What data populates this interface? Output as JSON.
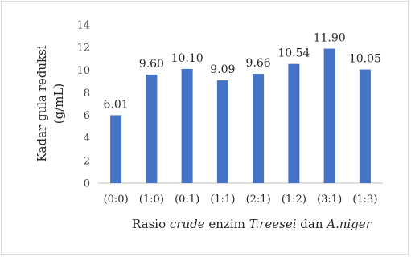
{
  "chart_data": {
    "type": "bar",
    "categories": [
      "(0:0)",
      "(1:0)",
      "(0:1)",
      "(1:1)",
      "(2:1)",
      "(1:2)",
      "(3:1)",
      "(1:3)"
    ],
    "values": [
      6.01,
      9.6,
      10.1,
      9.09,
      9.66,
      10.54,
      11.9,
      10.05
    ],
    "data_labels": [
      "6.01",
      "9.60",
      "10.10",
      "9.09",
      "9.66",
      "10.54",
      "11.90",
      "10.05"
    ],
    "ylim": [
      0,
      14
    ],
    "yticks": [
      0,
      2,
      4,
      6,
      8,
      10,
      12,
      14
    ],
    "ylabel_line1": "Kadar gula reduksi",
    "ylabel_line2": "(g/mL)",
    "xlabel_parts": [
      {
        "text": "Rasio ",
        "italic": false
      },
      {
        "text": "crude",
        "italic": true
      },
      {
        "text": " enzim ",
        "italic": false
      },
      {
        "text": "T.reesei",
        "italic": true
      },
      {
        "text": " dan ",
        "italic": false
      },
      {
        "text": "A.niger",
        "italic": true
      }
    ],
    "bar_color": "#4472c4",
    "grid": false,
    "legend": "none"
  }
}
